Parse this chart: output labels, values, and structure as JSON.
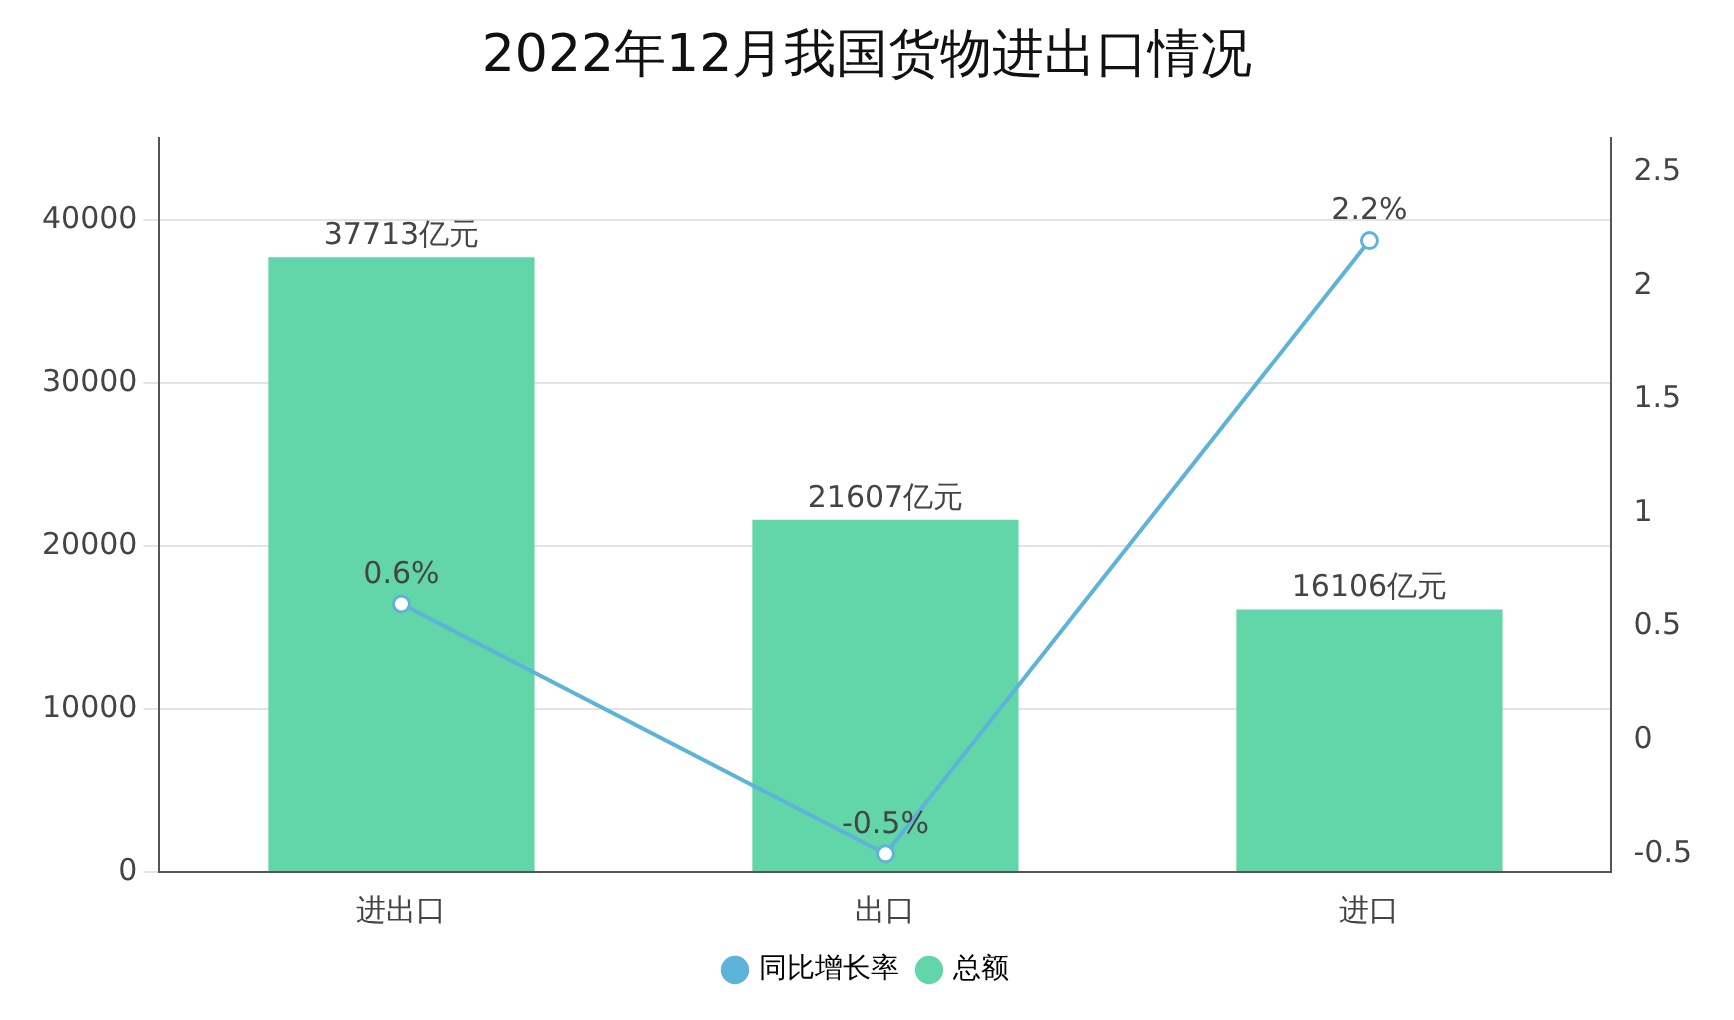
{
  "chart_data": {
    "type": "bar",
    "title": "2022年12月我国货物进出口情况",
    "categories": [
      "进出口",
      "出口",
      "进口"
    ],
    "series": [
      {
        "name": "同比增长率",
        "type": "line",
        "axis": "y2",
        "color": "#5eb3d8",
        "values": [
          0.6,
          -0.5,
          2.2
        ],
        "value_labels": [
          "0.6%",
          "-0.5%",
          "2.2%"
        ]
      },
      {
        "name": "总额",
        "color": "#62d6a9",
        "values": [
          37713,
          21607,
          16106
        ],
        "value_labels": [
          "37713亿元",
          "21607亿元",
          "16106亿元"
        ]
      }
    ],
    "ylim": [
      0,
      45000
    ],
    "yticks": [
      0,
      10000,
      20000,
      30000,
      40000
    ],
    "y2lim": [
      -0.58,
      2.65
    ],
    "y2ticks": [
      -0.5,
      0,
      0.5,
      1,
      1.5,
      2,
      2.5
    ],
    "grid": "y",
    "legend": "bottom",
    "marker": "circle",
    "line_style": "solid"
  }
}
